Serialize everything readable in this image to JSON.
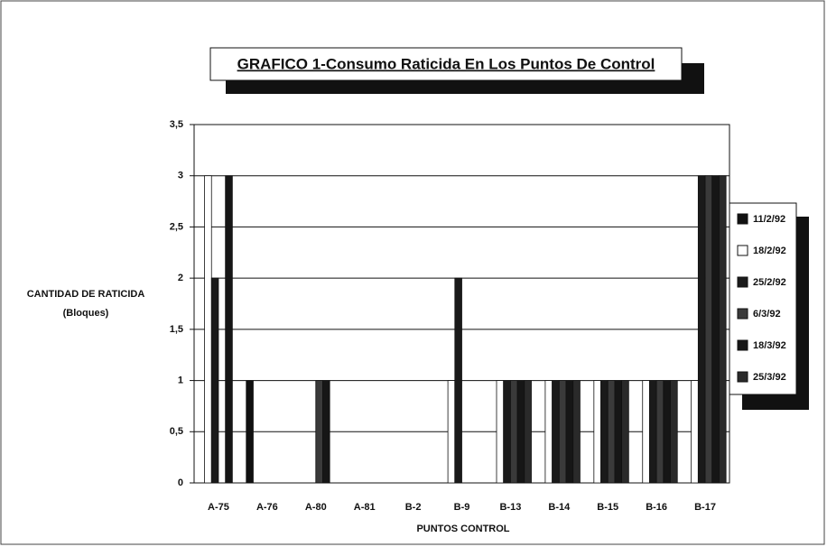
{
  "chart_data": {
    "type": "bar",
    "title": "GRAFICO 1-Consumo Raticida En Los Puntos De Control",
    "y_label": "CANTIDAD DE RATICIDA",
    "y_label_sub": "(Bloques)",
    "x_label": "PUNTOS CONTROL",
    "categories": [
      "A-75",
      "A-76",
      "A-80",
      "A-81",
      "B-2",
      "B-9",
      "B-13",
      "B-14",
      "B-15",
      "B-16",
      "B-17"
    ],
    "series": [
      {
        "name": "11/2/92",
        "color": "#111111",
        "values": [
          0,
          1,
          0,
          0,
          0,
          0,
          0,
          0,
          0,
          0,
          0
        ]
      },
      {
        "name": "18/2/92",
        "color": "#ffffff",
        "values": [
          3,
          0,
          0,
          0,
          0,
          1,
          1,
          1,
          1,
          1,
          1
        ]
      },
      {
        "name": "25/2/92",
        "color": "#1a1a1a",
        "values": [
          2,
          0,
          0,
          0,
          0,
          2,
          1,
          1,
          1,
          1,
          3
        ]
      },
      {
        "name": "6/3/92",
        "color": "#3a3a3a",
        "values": [
          0,
          0,
          1,
          0,
          0,
          0,
          1,
          1,
          1,
          1,
          3
        ]
      },
      {
        "name": "18/3/92",
        "color": "#161616",
        "values": [
          3,
          0,
          1,
          0,
          0,
          0,
          1,
          1,
          1,
          1,
          3
        ]
      },
      {
        "name": "25/3/92",
        "color": "#2a2a2a",
        "values": [
          0,
          0,
          0,
          0,
          0,
          0,
          1,
          1,
          1,
          1,
          3
        ]
      }
    ],
    "ylim": [
      0,
      3.5
    ],
    "yticks": [
      0,
      {
        "value": 0.5,
        "label": "0,5"
      },
      1,
      {
        "value": 1.5,
        "label": "1,5"
      },
      2,
      {
        "value": 2.5,
        "label": "2,5"
      },
      3,
      {
        "value": 3.5,
        "label": "3,5"
      }
    ],
    "grid": true
  }
}
